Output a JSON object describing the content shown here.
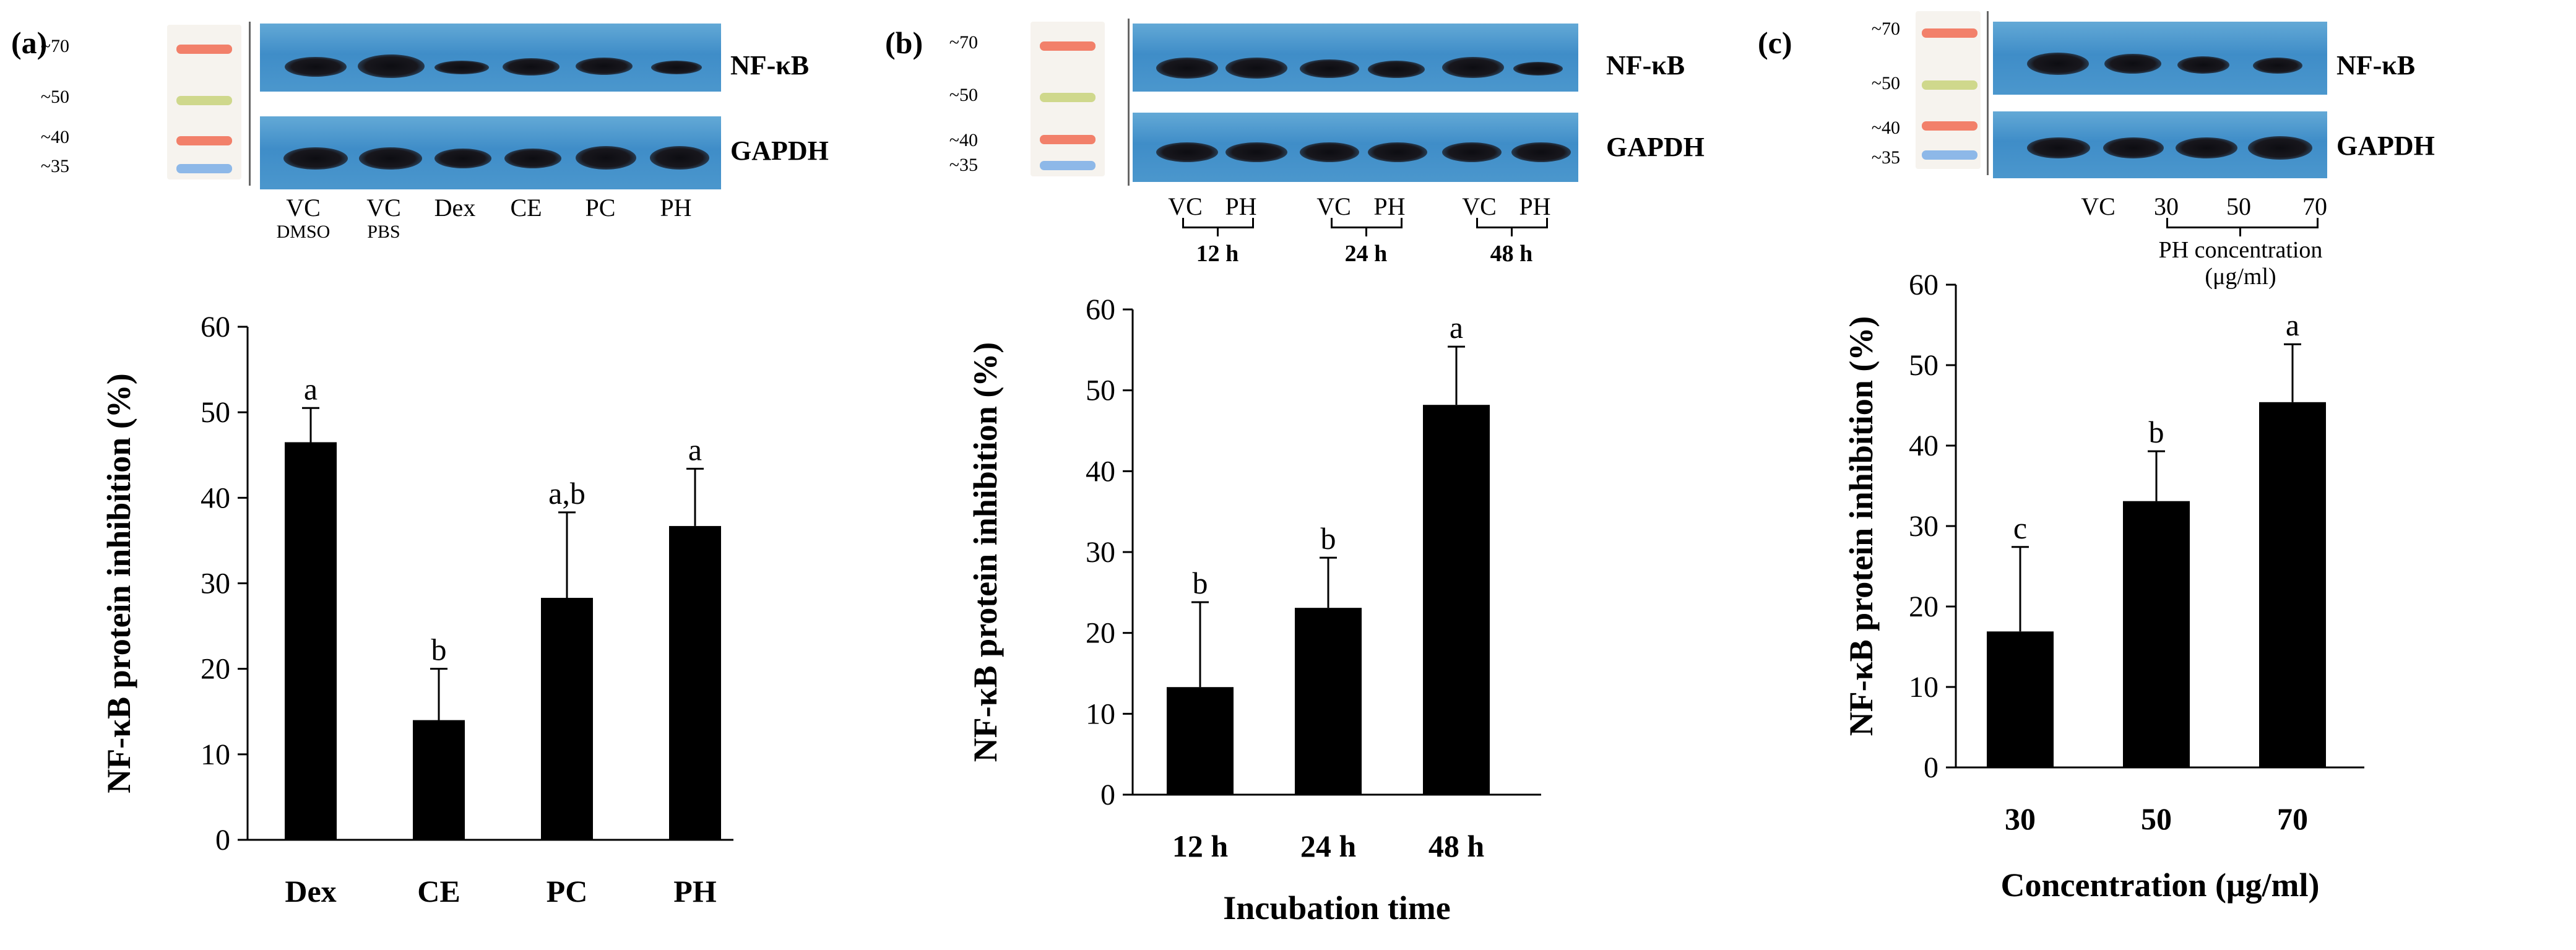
{
  "panels": {
    "a": {
      "label": "(a)",
      "mw_markers": [
        "~70",
        "~50",
        "~40",
        "~35"
      ],
      "blot_labels": [
        "NF-κB",
        "GAPDH"
      ],
      "lanes": [
        {
          "main": "VC",
          "sub": "DMSO"
        },
        {
          "main": "VC",
          "sub": "PBS"
        },
        {
          "main": "Dex",
          "sub": ""
        },
        {
          "main": "CE",
          "sub": ""
        },
        {
          "main": "PC",
          "sub": ""
        },
        {
          "main": "PH",
          "sub": ""
        }
      ]
    },
    "b": {
      "label": "(b)",
      "mw_markers": [
        "~70",
        "~50",
        "~40",
        "~35"
      ],
      "blot_labels": [
        "NF-κB",
        "GAPDH"
      ],
      "lanes": [
        "VC",
        "PH",
        "VC",
        "PH",
        "VC",
        "PH"
      ],
      "groups": [
        "12 h",
        "24 h",
        "48 h"
      ]
    },
    "c": {
      "label": "(c)",
      "mw_markers": [
        "~70",
        "~50",
        "~40",
        "~35"
      ],
      "blot_labels": [
        "NF-κB",
        "GAPDH"
      ],
      "lanes": [
        "VC",
        "30",
        "50",
        "70"
      ],
      "group_label": "PH concentration",
      "group_unit": "(μg/ml)"
    }
  },
  "chart_data": [
    {
      "type": "bar",
      "title": "",
      "categories": [
        "Dex",
        "CE",
        "PC",
        "PH"
      ],
      "values": [
        46.5,
        14,
        28.3,
        36.7
      ],
      "errors": [
        4,
        6,
        10,
        6.7
      ],
      "significance": [
        "a",
        "b",
        "a,b",
        "a"
      ],
      "xlabel": "",
      "ylabel": "NF-κB protein inhibition (%)",
      "ylim": [
        0,
        60
      ],
      "yticks": [
        0,
        10,
        20,
        30,
        40,
        50,
        60
      ]
    },
    {
      "type": "bar",
      "title": "",
      "categories": [
        "12 h",
        "24 h",
        "48 h"
      ],
      "values": [
        13.3,
        23.1,
        48.2
      ],
      "errors": [
        10.5,
        6.2,
        7.2
      ],
      "significance": [
        "b",
        "b",
        "a"
      ],
      "xlabel": "Incubation time",
      "ylabel": "NF-κB protein inhibition (%)",
      "ylim": [
        0,
        60
      ],
      "yticks": [
        0,
        10,
        20,
        30,
        40,
        50,
        60
      ]
    },
    {
      "type": "bar",
      "title": "",
      "categories": [
        "30",
        "50",
        "70"
      ],
      "values": [
        16.9,
        33.1,
        45.4
      ],
      "errors": [
        10.5,
        6.2,
        7.2
      ],
      "significance": [
        "c",
        "b",
        "a"
      ],
      "xlabel": "Concentration (μg/ml)",
      "ylabel": "NF-κB protein inhibition (%)",
      "ylim": [
        0,
        60
      ],
      "yticks": [
        0,
        10,
        20,
        30,
        40,
        50,
        60
      ]
    }
  ]
}
